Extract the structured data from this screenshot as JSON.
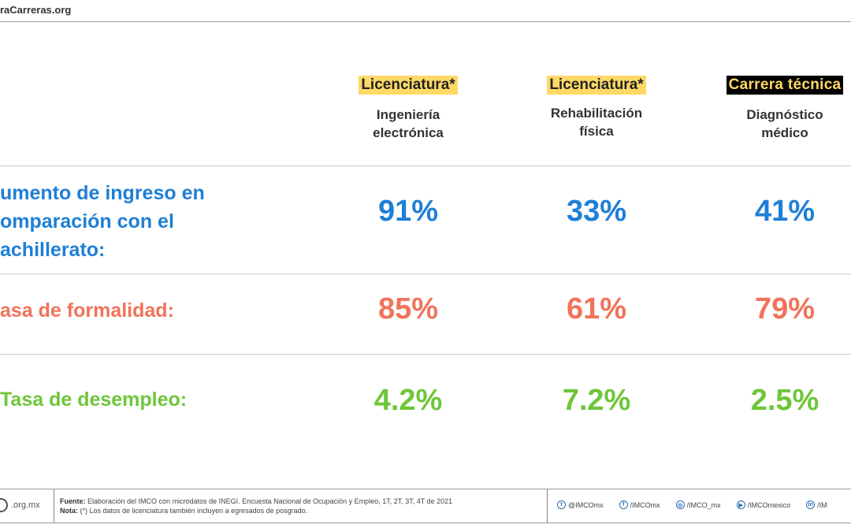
{
  "header": {
    "site_url": "raCarreras.org"
  },
  "columns": [
    {
      "badge": "Licenciatura*",
      "badge_style": "yellow",
      "sub_line1": "Ingeniería",
      "sub_line2": "electrónica"
    },
    {
      "badge": "Licenciatura*",
      "badge_style": "yellow",
      "sub_line1": "Rehabilitación",
      "sub_line2": "física"
    },
    {
      "badge": "Carrera técnica",
      "badge_style": "black",
      "sub_line1": "Diagnóstico",
      "sub_line2": "médico"
    }
  ],
  "rows": [
    {
      "label_lines": [
        "umento de ingreso en",
        "omparación con el",
        "achillerato:"
      ],
      "color": "#1e7fd6",
      "values": [
        "91%",
        "33%",
        "41%"
      ]
    },
    {
      "label_lines": [
        "asa de formalidad:"
      ],
      "color": "#f0735a",
      "values": [
        "85%",
        "61%",
        "79%"
      ]
    },
    {
      "label_lines": [
        "Tasa de desempleo:"
      ],
      "color": "#6ec63a",
      "values": [
        "4.2%",
        "7.2%",
        "2.5%"
      ]
    }
  ],
  "footer": {
    "logo_text": ".org.mx",
    "source_label": "Fuente:",
    "source_text": "Elaboración del IMCO  con microdatos de INEGI.  Encuesta Nacional de Ocupación y Empleo,  1T, 2T, 3T, 4T de 2021",
    "note_label": "Nota:",
    "note_text": "(*) Los datos de licenciatura también  incluyen a egresados de posgrado.",
    "socials": [
      {
        "icon": "twitter-icon",
        "glyph": "t",
        "handle": "@IMCOmx"
      },
      {
        "icon": "facebook-icon",
        "glyph": "f",
        "handle": "/IMCOmx"
      },
      {
        "icon": "instagram-icon",
        "glyph": "◎",
        "handle": "/IMCO_mx"
      },
      {
        "icon": "youtube-icon",
        "glyph": "▶",
        "handle": "/IMCOmexico"
      },
      {
        "icon": "linkedin-icon",
        "glyph": "in",
        "handle": "/IM"
      }
    ]
  }
}
